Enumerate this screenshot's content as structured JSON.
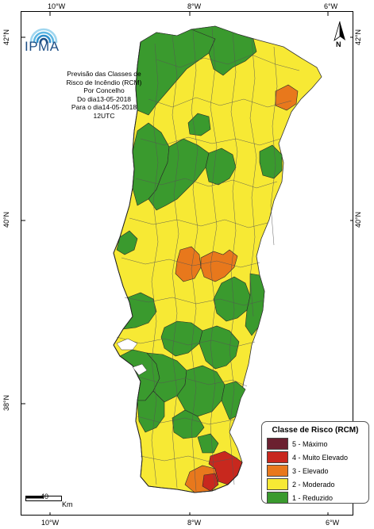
{
  "map": {
    "longitude_ticks": [
      "10°W",
      "8°W",
      "6°W"
    ],
    "latitude_ticks": [
      "42°N",
      "40°N",
      "38°N"
    ],
    "info_lines": [
      "Previsão das Classes de",
      "Risco de Incêndio (RCM)",
      "Por Concelho",
      "Do dia13-05-2018",
      "Para o dia14-05-2018",
      "12UTC"
    ],
    "logo_text": "IPMA",
    "north_label": "N",
    "scale": {
      "value": "40",
      "unit": "Km"
    }
  },
  "legend": {
    "title": "Classe de Risco (RCM)",
    "items": [
      {
        "label": "5 - Máximo",
        "color": "#6b2030"
      },
      {
        "label": "4 - Muito Elevado",
        "color": "#c8281e"
      },
      {
        "label": "3 - Elevado",
        "color": "#e8781c"
      },
      {
        "label": "2 - Moderado",
        "color": "#f7e934"
      },
      {
        "label": "1 - Reduzido",
        "color": "#3a9a2e"
      }
    ]
  }
}
